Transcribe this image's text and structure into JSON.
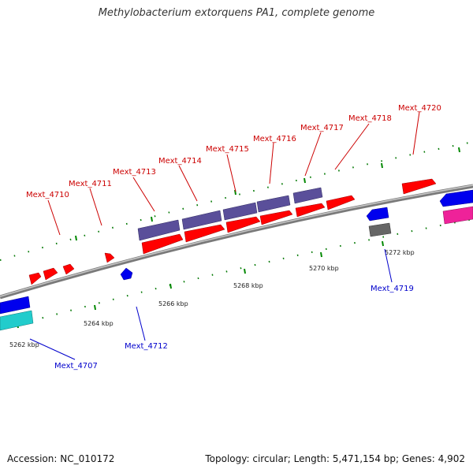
{
  "title": "Methylobacterium extorquens PA1, complete genome",
  "footer": {
    "accession": "Accession: NC_010172",
    "summary": "Topology: circular; Length: 5,471,154 bp; Genes: 4,902"
  },
  "colors": {
    "forward_gene": "#ff0000",
    "reverse_gene": "#0000ee",
    "forward_label": "#cc0000",
    "reverse_label": "#0000cc",
    "purple_gene": "#5a4f9a",
    "cyan_gene": "#22cccc",
    "magenta_gene": "#ee2299",
    "gray_gene": "#666666",
    "tick_major": "#008800"
  },
  "ticks": [
    {
      "label": "5262 kbp"
    },
    {
      "label": "5264 kbp"
    },
    {
      "label": "5266 kbp"
    },
    {
      "label": "5268 kbp"
    },
    {
      "label": "5270 kbp"
    },
    {
      "label": "5272 kbp"
    }
  ],
  "labels": [
    {
      "text": "Mext_4710",
      "strand": "forward"
    },
    {
      "text": "Mext_4711",
      "strand": "forward"
    },
    {
      "text": "Mext_4713",
      "strand": "forward"
    },
    {
      "text": "Mext_4714",
      "strand": "forward"
    },
    {
      "text": "Mext_4715",
      "strand": "forward"
    },
    {
      "text": "Mext_4716",
      "strand": "forward"
    },
    {
      "text": "Mext_4717",
      "strand": "forward"
    },
    {
      "text": "Mext_4718",
      "strand": "forward"
    },
    {
      "text": "Mext_4720",
      "strand": "forward"
    },
    {
      "text": "Mext_4707",
      "strand": "reverse"
    },
    {
      "text": "Mext_4712",
      "strand": "reverse"
    },
    {
      "text": "Mext_4719",
      "strand": "reverse"
    }
  ]
}
